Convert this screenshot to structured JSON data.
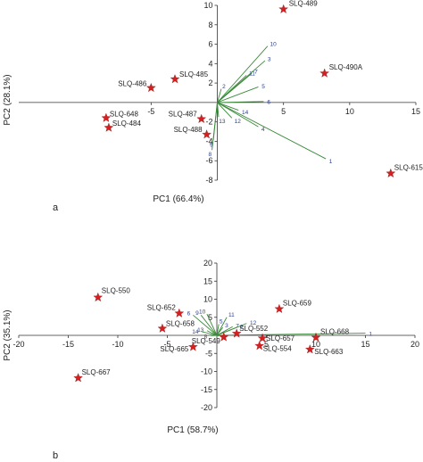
{
  "chart_data": [
    {
      "type": "scatter",
      "panel_label": "a",
      "xlabel": "PC1 (66.4%)",
      "ylabel": "PC2 (28.1%)",
      "xlim": [
        -15,
        15
      ],
      "ylim": [
        -8,
        10
      ],
      "xticks": [
        -5,
        5,
        10,
        15
      ],
      "xtick_labels": [
        "-5",
        "5",
        "10",
        "15"
      ],
      "yticks": [
        -8,
        -6,
        -4,
        -2,
        2,
        4,
        6,
        8,
        10
      ],
      "ytick_labels": [
        "-8",
        "-6",
        "-4",
        "-2",
        "2",
        "4",
        "6",
        "8",
        "10"
      ],
      "marker_color": "#d42020",
      "vector_color": "#3c8a3c",
      "vector_label_color": "#2a3f8f",
      "points": [
        {
          "label": "SLQ-489",
          "x": 5.0,
          "y": 9.6
        },
        {
          "label": "SLQ-490A",
          "x": 8.1,
          "y": 3.0
        },
        {
          "label": "SLQ-485",
          "x": -3.2,
          "y": 2.4
        },
        {
          "label": "SLQ-486",
          "x": -5.0,
          "y": 1.5
        },
        {
          "label": "SLQ-648",
          "x": -8.4,
          "y": -1.6
        },
        {
          "label": "SLQ-484",
          "x": -8.2,
          "y": -2.6
        },
        {
          "label": "SLQ-487",
          "x": -1.2,
          "y": -1.7
        },
        {
          "label": "SLQ-488",
          "x": -0.8,
          "y": -3.3
        },
        {
          "label": "SLQ-615A",
          "x": 13.1,
          "y": -7.3
        }
      ],
      "vectors": [
        {
          "label": "1",
          "x": 8.2,
          "y": -5.8
        },
        {
          "label": "2",
          "x": 0.3,
          "y": 1.4
        },
        {
          "label": "3",
          "x": 3.6,
          "y": 4.3
        },
        {
          "label": "4",
          "x": 3.1,
          "y": -2.5
        },
        {
          "label": "5",
          "x": 3.1,
          "y": 1.6
        },
        {
          "label": "6",
          "x": 3.5,
          "y": 0.1
        },
        {
          "label": "7",
          "x": 2.6,
          "y": 3.0
        },
        {
          "label": "8",
          "x": -0.4,
          "y": -4.9
        },
        {
          "label": "9",
          "x": -0.3,
          "y": -3.9
        },
        {
          "label": "10",
          "x": 3.8,
          "y": 5.8
        },
        {
          "label": "11",
          "x": 2.2,
          "y": 2.8
        },
        {
          "label": "12",
          "x": 1.1,
          "y": -1.6
        },
        {
          "label": "13",
          "x": 0.1,
          "y": -1.5
        },
        {
          "label": "14",
          "x": 1.6,
          "y": -0.8
        }
      ]
    },
    {
      "type": "scatter",
      "panel_label": "b",
      "xlabel": "PC1 (58.7%)",
      "ylabel": "PC2 (35.1%)",
      "xlim": [
        -20,
        20
      ],
      "ylim": [
        -20,
        20
      ],
      "xticks": [
        -20,
        -15,
        -10,
        -5,
        5,
        10,
        15,
        20
      ],
      "xtick_labels": [
        "-20",
        "-15",
        "-10",
        "-5",
        "5",
        "10",
        "15",
        "20"
      ],
      "yticks": [
        -20,
        -15,
        -10,
        -5,
        5,
        10,
        15,
        20
      ],
      "ytick_labels": [
        "-20",
        "-15",
        "-10",
        "-5",
        "5",
        "10",
        "15",
        "20"
      ],
      "marker_color": "#d42020",
      "vector_color": "#3c8a3c",
      "vector_label_color": "#2a3f8f",
      "points": [
        {
          "label": "SLQ-550",
          "x": -12.0,
          "y": 10.5
        },
        {
          "label": "SLQ-652",
          "x": -3.8,
          "y": 6.1
        },
        {
          "label": "SLQ-658",
          "x": -5.5,
          "y": 1.9
        },
        {
          "label": "SLQ-665",
          "x": -2.4,
          "y": -3.2
        },
        {
          "label": "SLQ-549",
          "x": 0.7,
          "y": -0.5
        },
        {
          "label": "SLQ-552",
          "x": 2.0,
          "y": 0.5
        },
        {
          "label": "SLQ-659",
          "x": 6.3,
          "y": 7.3
        },
        {
          "label": "SLQ-657",
          "x": 4.6,
          "y": -0.8
        },
        {
          "label": "SLQ-554",
          "x": 4.3,
          "y": -2.9
        },
        {
          "label": "SLQ-668",
          "x": 10.0,
          "y": -0.6
        },
        {
          "label": "SLQ-663",
          "x": 9.4,
          "y": -3.9
        },
        {
          "label": "SLQ-667",
          "x": -14.0,
          "y": -11.8
        }
      ],
      "vectors": [
        {
          "label": "1",
          "x": 15.0,
          "y": 0.6
        },
        {
          "label": "2",
          "x": 2.0,
          "y": 2.2
        },
        {
          "label": "3",
          "x": 0.6,
          "y": 2.2
        },
        {
          "label": "4",
          "x": 0.2,
          "y": -0.2
        },
        {
          "label": "5",
          "x": 0.2,
          "y": 3.1
        },
        {
          "label": "6",
          "x": -2.4,
          "y": 5.6
        },
        {
          "label": "7",
          "x": 1.6,
          "y": 2.4
        },
        {
          "label": "8",
          "x": -0.6,
          "y": -0.1
        },
        {
          "label": "9",
          "x": -1.6,
          "y": 5.6
        },
        {
          "label": "10",
          "x": -1.0,
          "y": 5.9
        },
        {
          "label": "11",
          "x": 1.0,
          "y": 5.0
        },
        {
          "label": "12",
          "x": 3.0,
          "y": 3.3
        },
        {
          "label": "13",
          "x": -1.0,
          "y": 1.3
        },
        {
          "label": "14",
          "x": -1.5,
          "y": 1.0
        }
      ]
    }
  ]
}
